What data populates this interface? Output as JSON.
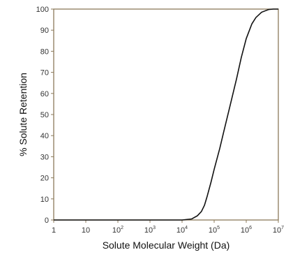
{
  "chart_data": {
    "type": "line",
    "title": "",
    "xlabel": "Solute Molecular Weight (Da)",
    "ylabel": "% Solute Retention",
    "xscale": "log",
    "xlim": [
      1,
      10000000
    ],
    "ylim": [
      0,
      100
    ],
    "x_ticks": [
      {
        "value": 1,
        "base": "1",
        "exp": ""
      },
      {
        "value": 10,
        "base": "10",
        "exp": ""
      },
      {
        "value": 100,
        "base": "10",
        "exp": "2"
      },
      {
        "value": 1000,
        "base": "10",
        "exp": "3"
      },
      {
        "value": 10000,
        "base": "10",
        "exp": "4"
      },
      {
        "value": 100000,
        "base": "10",
        "exp": "5"
      },
      {
        "value": 1000000,
        "base": "10",
        "exp": "6"
      },
      {
        "value": 10000000,
        "base": "10",
        "exp": "7"
      }
    ],
    "y_ticks": [
      0,
      10,
      20,
      30,
      40,
      50,
      60,
      70,
      80,
      90,
      100
    ],
    "grid": false,
    "legend": "none",
    "colors": {
      "line": "#111111",
      "frame": "#8b7a5a",
      "text": "#333333"
    },
    "series": [
      {
        "x": [
          1,
          10,
          100,
          1000,
          10000,
          20000,
          30000,
          40000,
          50000,
          60000,
          80000,
          100000,
          150000,
          200000,
          300000,
          500000,
          700000,
          1000000,
          1500000,
          2000000,
          3000000,
          5000000,
          7000000,
          10000000
        ],
        "values": [
          0,
          0,
          0,
          0,
          0,
          0.5,
          2,
          4,
          7,
          11,
          18,
          24,
          34,
          42,
          53,
          67,
          77,
          86,
          93,
          96,
          98.5,
          99.8,
          100,
          100
        ]
      }
    ]
  }
}
